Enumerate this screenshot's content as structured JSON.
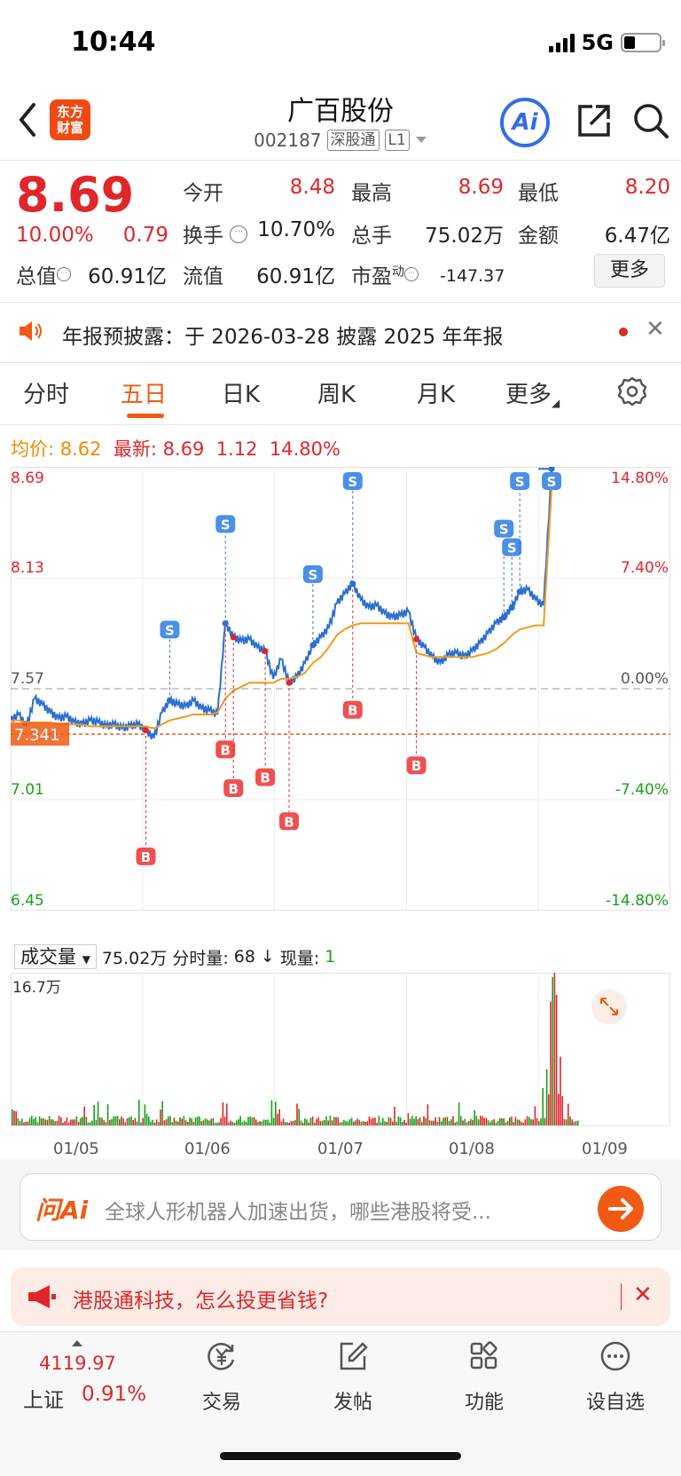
{
  "status": {
    "time": "10:44",
    "network": "5G"
  },
  "header": {
    "logo_line1": "东方",
    "logo_line2": "财富",
    "name": "广百股份",
    "code": "002187",
    "tag1": "深股通",
    "tag2": "L1",
    "ai_label": "Ai"
  },
  "quote": {
    "price": "8.69",
    "pct": "10.00%",
    "change": "0.79",
    "open_label": "今开",
    "open": "8.48",
    "high_label": "最高",
    "high": "8.69",
    "low_label": "最低",
    "low": "8.20",
    "turnover_label": "换手",
    "turnover": "10.70%",
    "volume_label": "总手",
    "volume": "75.02万",
    "amount_label": "金额",
    "amount": "6.47亿",
    "mktcap_label": "总值",
    "mktcap": "60.91亿",
    "float_label": "流值",
    "float": "60.91亿",
    "pe_label": "市盈",
    "pe_sup": "动",
    "pe": "-147.37",
    "more": "更多"
  },
  "notice": {
    "text": "年报预披露：于 2026-03-28 披露 2025 年年报"
  },
  "tabs": {
    "fenshi": "分时",
    "wuri": "五日",
    "rik": "日K",
    "zhouk": "周K",
    "yuek": "月K",
    "more": "更多"
  },
  "info": {
    "avg_label": "均价:",
    "avg": "8.62",
    "latest_label": "最新:",
    "latest": "8.69",
    "chg": "1.12",
    "pct": "14.80%"
  },
  "chart_data": {
    "type": "line",
    "title": "",
    "days": [
      "01/05",
      "01/06",
      "01/07",
      "01/08",
      "01/09"
    ],
    "y_labels_left": [
      "8.69",
      "8.13",
      "7.57",
      "7.01",
      "6.45"
    ],
    "y_labels_right": [
      "14.80%",
      "7.40%",
      "0.00%",
      "-7.40%",
      "-14.80%"
    ],
    "ylim": [
      6.45,
      8.69
    ],
    "reference_price": 7.57,
    "current_line": "7.341",
    "series": [
      {
        "values": [
          7.41,
          7.44,
          7.38,
          7.52,
          7.49,
          7.45,
          7.42,
          7.43,
          7.4,
          7.39,
          7.41,
          7.4,
          7.38,
          7.39,
          7.37,
          7.38,
          7.39,
          7.36,
          7.32,
          7.45,
          7.51,
          7.49,
          7.48,
          7.51,
          7.47,
          7.46,
          7.44,
          7.9,
          7.83,
          7.81,
          7.82,
          7.78,
          7.76,
          7.62,
          7.72,
          7.6,
          7.63,
          7.7,
          7.79,
          7.83,
          7.88,
          8.0,
          8.05,
          8.1,
          8.02,
          7.98,
          7.99,
          7.95,
          7.93,
          7.94,
          7.96,
          7.82,
          7.78,
          7.73,
          7.7,
          7.74,
          7.75,
          7.73,
          7.76,
          7.8,
          7.85,
          7.9,
          7.93,
          7.98,
          8.06,
          8.07,
          8.02,
          7.99,
          8.68
        ]
      },
      {
        "values": [
          7.41,
          7.41,
          7.4,
          7.4,
          7.4,
          7.4,
          7.39,
          7.39,
          7.39,
          7.39,
          7.38,
          7.38,
          7.38,
          7.38,
          7.38,
          7.38,
          7.38,
          7.38,
          7.37,
          7.39,
          7.41,
          7.42,
          7.43,
          7.44,
          7.44,
          7.44,
          7.45,
          7.52,
          7.56,
          7.58,
          7.6,
          7.6,
          7.6,
          7.6,
          7.62,
          7.62,
          7.63,
          7.65,
          7.7,
          7.73,
          7.78,
          7.84,
          7.87,
          7.89,
          7.9,
          7.9,
          7.9,
          7.9,
          7.9,
          7.9,
          7.9,
          7.75,
          7.74,
          7.73,
          7.73,
          7.73,
          7.73,
          7.73,
          7.73,
          7.74,
          7.75,
          7.77,
          7.8,
          7.84,
          7.87,
          7.88,
          7.89,
          7.89,
          8.58
        ]
      }
    ],
    "volume": {
      "label": "成交量",
      "total": "75.02万",
      "split_label": "分时量:",
      "split": "68",
      "arrow": "↓",
      "cur_label": "现量:",
      "cur": "1",
      "ymax_label": "16.7万",
      "ylim": [
        0,
        16.7
      ]
    },
    "markers_B": [
      "B",
      "B",
      "B",
      "B",
      "B",
      "B",
      "B"
    ],
    "markers_S": [
      "S",
      "S",
      "S",
      "S",
      "S",
      "S",
      "S",
      "S"
    ]
  },
  "ask": {
    "logo": "问Ai",
    "text": "全球人形机器人加速出货，哪些港股将受..."
  },
  "promo": {
    "text": "港股通科技，怎么投更省钱?"
  },
  "nav": {
    "index_value": "4119.97",
    "index_name": "上证",
    "index_pct": "0.91%",
    "trade": "交易",
    "post": "发帖",
    "func": "功能",
    "watch": "设自选"
  },
  "colors": {
    "price_line": "#2b6fd0",
    "avg_line": "#f39a1e",
    "up": "#e0262a",
    "down": "#1aa01a",
    "accent": "#f05a14"
  }
}
